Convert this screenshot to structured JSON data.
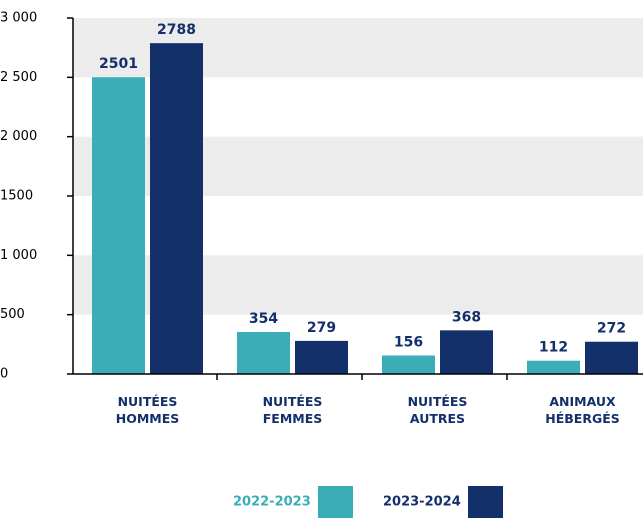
{
  "chart_data": {
    "type": "bar",
    "categories": [
      "NUITÉES HOMMES",
      "NUITÉES FEMMES",
      "NUITÉES AUTRES",
      "ANIMAUX HÉBERGÉS"
    ],
    "series": [
      {
        "name": "2022-2023",
        "color": "#3aadb7",
        "values": [
          2501,
          354,
          156,
          112
        ]
      },
      {
        "name": "2023-2024",
        "color": "#14306b",
        "values": [
          2788,
          279,
          368,
          272
        ]
      }
    ],
    "ylim": [
      0,
      3000
    ],
    "yticks": [
      0,
      500,
      {
        "value": 1000,
        "label": "1 000"
      },
      1500,
      {
        "value": 2000,
        "label": "2 000"
      },
      {
        "value": 2500,
        "label": "2 500"
      },
      {
        "value": 3000,
        "label": "3 000"
      }
    ],
    "grid": "bands"
  }
}
